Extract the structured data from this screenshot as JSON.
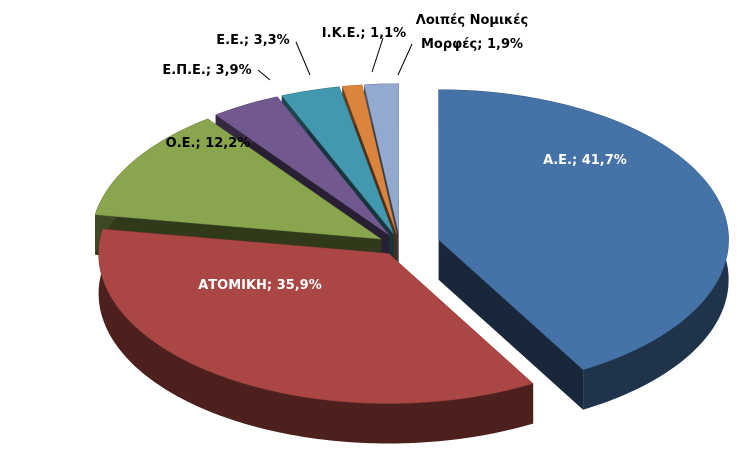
{
  "chart_data": {
    "type": "pie3d",
    "values": [
      41.7,
      35.9,
      12.2,
      3.9,
      3.3,
      1.1,
      1.9
    ],
    "value_labels": [
      "Α.Ε.; 41,7%",
      "ΑΤΟΜΙΚΗ; 35,9%",
      "Ο.Ε.; 12,2%",
      "Ε.Π.Ε.; 3,9%",
      "Ε.Ε.; 3,3%",
      "Ι.Κ.Ε.; 1,1%",
      "Λοιπές Νομικές\nΜορφές; 1,9%"
    ],
    "colors": [
      "#4572A7",
      "#AA4643",
      "#89A54E",
      "#71588F",
      "#4198AF",
      "#DB843D",
      "#93A9CF"
    ]
  }
}
